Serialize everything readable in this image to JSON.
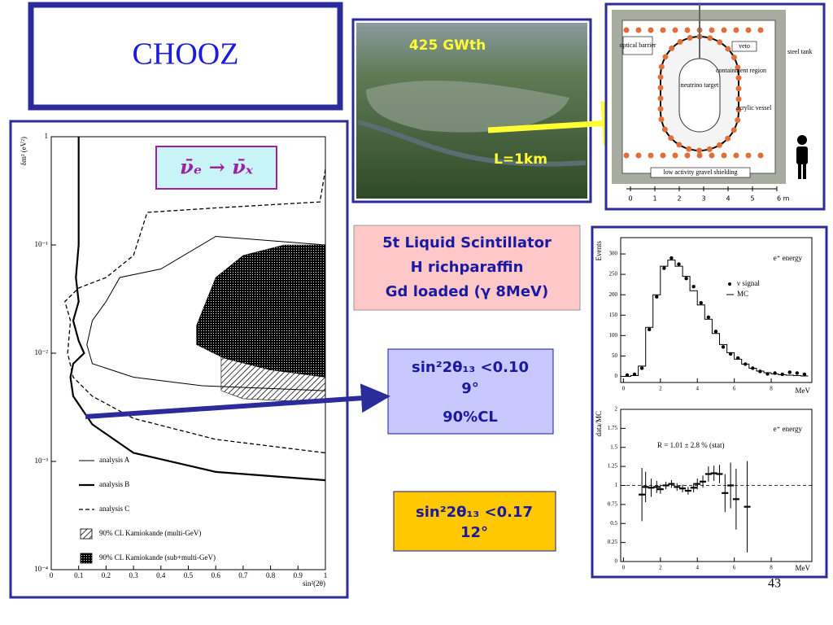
{
  "title": "CHOOZ",
  "photo": {
    "power": "425 GWth",
    "distance": "L=1km"
  },
  "detector": {
    "labels": [
      "optical barrier",
      "veto",
      "steel tank",
      "containment region",
      "neutrino target",
      "acrylic vessel",
      "low activity gravel shielding"
    ],
    "scale": [
      "0",
      "1",
      "2",
      "3",
      "4",
      "5",
      "6 m"
    ]
  },
  "info": {
    "lines": [
      "5t Liquid Scintillator",
      "H richparaffin",
      "Gd loaded (γ  8MeV)"
    ]
  },
  "limits": [
    {
      "lines": [
        "sin²2θ₁₃ <0.10",
        "9°",
        "90%CL"
      ]
    },
    {
      "lines": [
        "sin²2θ₁₃ <0.17",
        "12°"
      ]
    }
  ],
  "slide_number": "43",
  "chart_data": [
    {
      "type": "line",
      "log_y": true,
      "reaction": "ν̄ₑ → ν̄ₓ",
      "xlabel": "sin²(2θ)",
      "ylabel": "δm² (eV²)",
      "xlim": [
        0,
        1
      ],
      "ylim": [
        0.0001,
        1
      ],
      "xticks": [
        0,
        0.1,
        0.2,
        0.3,
        0.4,
        0.5,
        0.6,
        0.7,
        0.8,
        0.9,
        1
      ],
      "yticks": [
        {
          "value": 0.0001,
          "label": "10⁻⁴"
        },
        {
          "value": 0.001,
          "label": "10⁻³"
        },
        {
          "value": 0.01,
          "label": "10⁻²"
        },
        {
          "value": 0.1,
          "label": "10⁻¹"
        },
        1
      ],
      "regions": [
        {
          "name": "90% CL Kamiokande (multi-GeV)",
          "pattern": "hatch",
          "x": [
            0.62,
            0.62,
            0.7,
            1,
            1
          ],
          "y": [
            0.012,
            0.0045,
            0.0038,
            0.0035,
            0.012
          ]
        },
        {
          "name": "90% CL Kamiokande (sub+multi-GeV)",
          "pattern": "dots",
          "x": [
            0.53,
            0.6,
            0.7,
            0.85,
            1,
            1,
            0.8,
            0.63,
            0.53
          ],
          "y": [
            0.018,
            0.05,
            0.08,
            0.1,
            0.1,
            0.006,
            0.007,
            0.009,
            0.012
          ]
        }
      ],
      "series": [
        {
          "name": "analysis A",
          "style": "thin",
          "x": [
            1,
            0.6,
            0.4,
            0.25,
            0.2,
            0.15,
            0.13,
            0.15,
            0.3,
            0.55,
            1
          ],
          "y": [
            0.1,
            0.12,
            0.06,
            0.05,
            0.03,
            0.02,
            0.012,
            0.008,
            0.006,
            0.005,
            0.0045
          ]
        },
        {
          "name": "analysis B",
          "style": "thick",
          "x": [
            0.1,
            0.1,
            0.09,
            0.1,
            0.08,
            0.1,
            0.12,
            0.08,
            0.07,
            0.08,
            0.15,
            0.3,
            0.6,
            1
          ],
          "y": [
            1,
            0.1,
            0.05,
            0.03,
            0.02,
            0.013,
            0.01,
            0.008,
            0.006,
            0.004,
            0.0022,
            0.0012,
            0.0008,
            0.00067
          ]
        },
        {
          "name": "analysis C",
          "style": "dashed",
          "x": [
            1,
            0.98,
            0.6,
            0.35,
            0.3,
            0.2,
            0.1,
            0.05,
            0.07,
            0.06,
            0.08,
            0.15,
            0.3,
            0.6,
            1
          ],
          "y": [
            0.5,
            0.25,
            0.22,
            0.2,
            0.08,
            0.05,
            0.04,
            0.03,
            0.02,
            0.01,
            0.006,
            0.004,
            0.0025,
            0.0016,
            0.0012
          ]
        }
      ]
    },
    {
      "type": "scatter",
      "annotation": "e⁺ energy",
      "xlabel": "MeV",
      "ylabel": "Events",
      "xlim": [
        -0.15,
        10.2
      ],
      "ylim": [
        -15,
        340
      ],
      "xticks": [
        0,
        2,
        4,
        6,
        8
      ],
      "yticks": [
        0,
        50,
        100,
        150,
        200,
        250,
        300
      ],
      "x": [
        0.2,
        0.6,
        1.0,
        1.4,
        1.8,
        2.2,
        2.6,
        3.0,
        3.4,
        3.8,
        4.2,
        4.6,
        5.0,
        5.4,
        5.8,
        6.2,
        6.6,
        7.0,
        7.4,
        7.8,
        8.2,
        8.6,
        9.0,
        9.4,
        9.8
      ],
      "series": [
        {
          "name": "ν signal",
          "marker": "dot",
          "values": [
            3,
            5,
            20,
            115,
            195,
            265,
            290,
            275,
            240,
            220,
            180,
            145,
            110,
            72,
            55,
            45,
            30,
            20,
            12,
            6,
            8,
            5,
            10,
            8,
            5
          ]
        },
        {
          "name": "MC",
          "marker": "step",
          "values": [
            0,
            2,
            25,
            120,
            200,
            270,
            285,
            270,
            245,
            210,
            175,
            140,
            105,
            78,
            58,
            42,
            30,
            20,
            13,
            9,
            6,
            4,
            3,
            2,
            1
          ]
        }
      ]
    },
    {
      "type": "errorbar",
      "annotation": "e⁺ energy",
      "formula": "R = 1.01 ± 2.8 % (stat)",
      "xlabel": "MeV",
      "ylabel": "data/MC",
      "reference": 1,
      "xlim": [
        -0.15,
        10.2
      ],
      "ylim": [
        0,
        2
      ],
      "xticks": [
        0,
        2,
        4,
        6,
        8
      ],
      "yticks": [
        0,
        0.25,
        0.5,
        0.75,
        1,
        1.25,
        1.5,
        1.75,
        2
      ],
      "x": [
        1.0,
        1.2,
        1.5,
        1.8,
        2.0,
        2.3,
        2.6,
        2.9,
        3.2,
        3.5,
        3.8,
        4.0,
        4.3,
        4.6,
        4.9,
        5.2,
        5.5,
        5.8,
        6.1,
        6.7
      ],
      "values": [
        0.88,
        0.98,
        0.97,
        0.98,
        0.95,
        1.0,
        1.02,
        0.98,
        0.96,
        0.93,
        0.97,
        1.02,
        1.05,
        1.15,
        1.16,
        1.15,
        0.9,
        1.0,
        0.82,
        0.72
      ],
      "errors": [
        0.35,
        0.2,
        0.12,
        0.08,
        0.06,
        0.05,
        0.05,
        0.05,
        0.05,
        0.05,
        0.06,
        0.07,
        0.08,
        0.1,
        0.1,
        0.12,
        0.25,
        0.3,
        0.4,
        0.6
      ]
    }
  ]
}
